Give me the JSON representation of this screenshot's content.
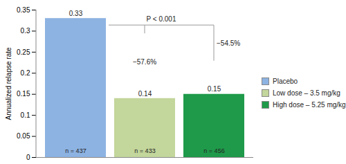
{
  "chart_data": {
    "type": "bar",
    "categories": [
      "Placebo",
      "Low dose – 3.5 mg/kg",
      "High dose – 5.25 mg/kg"
    ],
    "values": [
      0.33,
      0.14,
      0.15
    ],
    "colors": [
      "#8db3e2",
      "#c3d69b",
      "#1f9a4a"
    ],
    "ylabel": "Annualized relapse rate",
    "ylim": [
      0,
      0.35
    ],
    "yticks": [
      0,
      0.05,
      0.1,
      0.15,
      0.2,
      0.25,
      0.3,
      0.35
    ],
    "grid": false,
    "data_labels": true,
    "tick_labels": "y",
    "legend": "right",
    "n_labels": [
      "n = 437",
      "n = 433",
      "n = 456"
    ],
    "annotations": [
      "P < 0.001",
      "−57.6%",
      "−54.5%"
    ]
  }
}
